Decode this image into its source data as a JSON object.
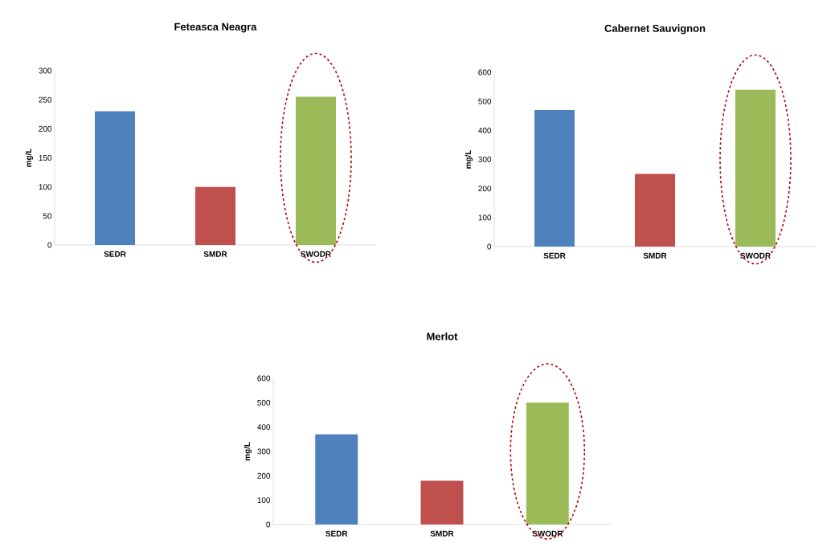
{
  "chart_data": [
    {
      "type": "bar",
      "title": "Feteasca Neagra",
      "ylabel": "mg/L",
      "categories": [
        "SEDR",
        "SMDR",
        "SWODR"
      ],
      "values": [
        230,
        100,
        255
      ],
      "colors": [
        "#4f81bd",
        "#c0504d",
        "#9bbb59"
      ],
      "ylim": [
        0,
        300
      ],
      "yticks": [
        0,
        50,
        100,
        150,
        200,
        250,
        300
      ]
    },
    {
      "type": "bar",
      "title": "Cabernet Sauvignon",
      "ylabel": "mg/L",
      "categories": [
        "SEDR",
        "SMDR",
        "SWODR"
      ],
      "values": [
        470,
        250,
        540
      ],
      "colors": [
        "#4f81bd",
        "#c0504d",
        "#9bbb59"
      ],
      "ylim": [
        0,
        600
      ],
      "yticks": [
        0,
        100,
        200,
        300,
        400,
        500,
        600
      ]
    },
    {
      "type": "bar",
      "title": "Merlot",
      "ylabel": "mg/L",
      "categories": [
        "SEDR",
        "SMDR",
        "SWODR"
      ],
      "values": [
        370,
        180,
        500
      ],
      "colors": [
        "#4f81bd",
        "#c0504d",
        "#9bbb59"
      ],
      "ylim": [
        0,
        600
      ],
      "yticks": [
        0,
        100,
        200,
        300,
        400,
        500,
        600
      ]
    }
  ]
}
